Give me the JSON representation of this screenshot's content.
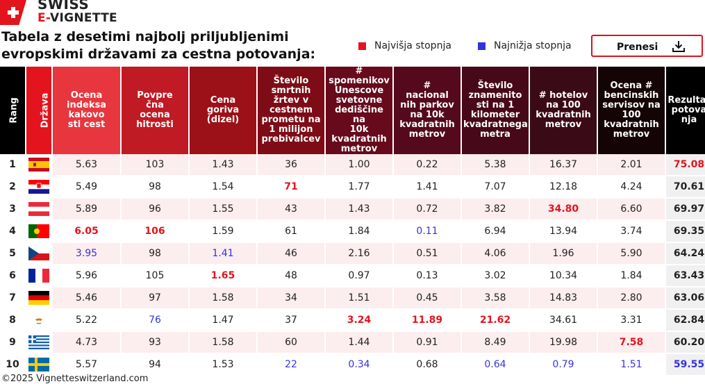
{
  "logo": {
    "line1": "SWISS",
    "line2_e": "E-",
    "line2_v": "VIGNETTE",
    "icon": "swiss-cross-icon"
  },
  "title": "Tabela z desetimi najbolj priljubljenimi evropskimi državami za cestna potovanja:",
  "legend": [
    {
      "label": "Najvišja stopnja",
      "color": "#e3141e"
    },
    {
      "label": "Najnižja stopnja",
      "color": "#3333dd"
    }
  ],
  "download_label": "Prenesi",
  "footer": "©2025 Vignetteswitzerland.com",
  "chart_data": {
    "type": "table",
    "columns": [
      {
        "label": "Rang",
        "color": "#000000"
      },
      {
        "label": "Država",
        "color": "#e3141e"
      },
      {
        "label": "Ocena indeksa kakovosti cest",
        "color": "#e8363f"
      },
      {
        "label": "Povprečna ocena hitrosti",
        "color": "#c01a24"
      },
      {
        "label": "Cena goriva (dizel)",
        "color": "#9c1018"
      },
      {
        "label": "Število smrtnih žrtev v cestnem prometu na 1 milijon prebivalcev",
        "color": "#7d0c17"
      },
      {
        "label": "# spomenikov Unescove svetovne dediščine na 10k kvadratnih metrov",
        "color": "#660a1c"
      },
      {
        "label": "# nacionalnih parkov na 10k kvadratnih metrov",
        "color": "#55091d"
      },
      {
        "label": "Število znamenitosti na 1 kilometer kvadratnega metra",
        "color": "#470819"
      },
      {
        "label": "# hotelov na 100 kvadratnih metrov",
        "color": "#3b0a17"
      },
      {
        "label": "Ocena # bencinskih servisov na 100 kvadratnih metrov",
        "color": "#140406"
      },
      {
        "label": "Rezultat potovanja",
        "color": "#000000"
      }
    ],
    "header_lines": [
      [
        "Rang"
      ],
      [
        "Država"
      ],
      [
        "Ocena",
        "indeksa",
        "kakovo",
        "sti cest"
      ],
      [
        "Povpre",
        "čna",
        "ocena",
        "hitrosti"
      ],
      [
        "Cena",
        "goriva",
        "(dizel)"
      ],
      [
        "Število",
        "smrtnih",
        "žrtev v",
        "cestnem",
        "prometu na",
        "1 milijon",
        "prebivalcev"
      ],
      [
        "#",
        "spomenikov",
        "Unescove",
        "svetovne",
        "dediščine na",
        "10k",
        "kvadratnih",
        "metrov"
      ],
      [
        "#",
        "nacional",
        "nih parkov",
        "na 10k",
        "kvadratnih",
        "metrov"
      ],
      [
        "Število",
        "znamenito",
        "sti na 1",
        "kilometer",
        "kvadratnega",
        "metra"
      ],
      [
        "# hotelov",
        "na 100",
        "kvadratnih",
        "metrov"
      ],
      [
        "Ocena #",
        "bencinskih",
        "servisov na",
        "100",
        "kvadratnih",
        "metrov"
      ],
      [
        "Rezultat",
        "potova",
        "nja"
      ]
    ],
    "rows": [
      {
        "rank": "1",
        "flag": "spain-flag-icon",
        "values": [
          "5.63",
          "103",
          "1.43",
          "36",
          "1.00",
          "0.22",
          "5.38",
          "16.37",
          "2.01"
        ],
        "hl": [
          "",
          "",
          "",
          "",
          "",
          "",
          "",
          "",
          ""
        ],
        "result": "75.08",
        "result_hl": "hi"
      },
      {
        "rank": "2",
        "flag": "croatia-flag-icon",
        "values": [
          "5.49",
          "98",
          "1.54",
          "71",
          "1.77",
          "1.41",
          "7.07",
          "12.18",
          "4.24"
        ],
        "hl": [
          "",
          "",
          "",
          "hi",
          "",
          "",
          "",
          "",
          ""
        ],
        "result": "70.61",
        "result_hl": ""
      },
      {
        "rank": "3",
        "flag": "austria-flag-icon",
        "values": [
          "5.89",
          "96",
          "1.55",
          "43",
          "1.43",
          "0.72",
          "3.82",
          "34.80",
          "6.60"
        ],
        "hl": [
          "",
          "",
          "",
          "",
          "",
          "",
          "",
          "hi",
          ""
        ],
        "result": "69.97",
        "result_hl": ""
      },
      {
        "rank": "4",
        "flag": "portugal-flag-icon",
        "values": [
          "6.05",
          "106",
          "1.59",
          "61",
          "1.84",
          "0.11",
          "6.94",
          "13.94",
          "3.74"
        ],
        "hl": [
          "hi",
          "hi",
          "",
          "",
          "",
          "lo",
          "",
          "",
          ""
        ],
        "result": "69.35",
        "result_hl": ""
      },
      {
        "rank": "5",
        "flag": "czechia-flag-icon",
        "values": [
          "3.95",
          "98",
          "1.41",
          "46",
          "2.16",
          "0.51",
          "4.06",
          "1.96",
          "5.90"
        ],
        "hl": [
          "lo",
          "",
          "lo",
          "",
          "",
          "",
          "",
          "",
          ""
        ],
        "result": "64.24",
        "result_hl": ""
      },
      {
        "rank": "6",
        "flag": "france-flag-icon",
        "values": [
          "5.96",
          "105",
          "1.65",
          "48",
          "0.97",
          "0.13",
          "3.02",
          "10.34",
          "1.84"
        ],
        "hl": [
          "",
          "",
          "hi",
          "",
          "",
          "",
          "",
          "",
          ""
        ],
        "result": "63.43",
        "result_hl": ""
      },
      {
        "rank": "7",
        "flag": "germany-flag-icon",
        "values": [
          "5.46",
          "97",
          "1.58",
          "34",
          "1.51",
          "0.45",
          "3.58",
          "14.83",
          "2.80"
        ],
        "hl": [
          "",
          "",
          "",
          "",
          "",
          "",
          "",
          "",
          ""
        ],
        "result": "63.06",
        "result_hl": ""
      },
      {
        "rank": "8",
        "flag": "cyprus-flag-icon",
        "values": [
          "5.22",
          "76",
          "1.47",
          "37",
          "3.24",
          "11.89",
          "21.62",
          "34.61",
          "3.31"
        ],
        "hl": [
          "",
          "lo",
          "",
          "",
          "hi",
          "hi",
          "hi",
          "",
          ""
        ],
        "result": "62.84",
        "result_hl": ""
      },
      {
        "rank": "9",
        "flag": "greece-flag-icon",
        "values": [
          "4.73",
          "93",
          "1.58",
          "60",
          "1.44",
          "0.91",
          "8.49",
          "19.98",
          "7.58"
        ],
        "hl": [
          "",
          "",
          "",
          "",
          "",
          "",
          "",
          "",
          "hi"
        ],
        "result": "60.20",
        "result_hl": ""
      },
      {
        "rank": "10",
        "flag": "sweden-flag-icon",
        "values": [
          "5.57",
          "94",
          "1.53",
          "22",
          "0.34",
          "0.68",
          "0.64",
          "0.79",
          "1.51"
        ],
        "hl": [
          "",
          "",
          "",
          "lo",
          "lo",
          "",
          "lo",
          "lo",
          "lo"
        ],
        "result": "59.55",
        "result_hl": "lo"
      }
    ]
  }
}
